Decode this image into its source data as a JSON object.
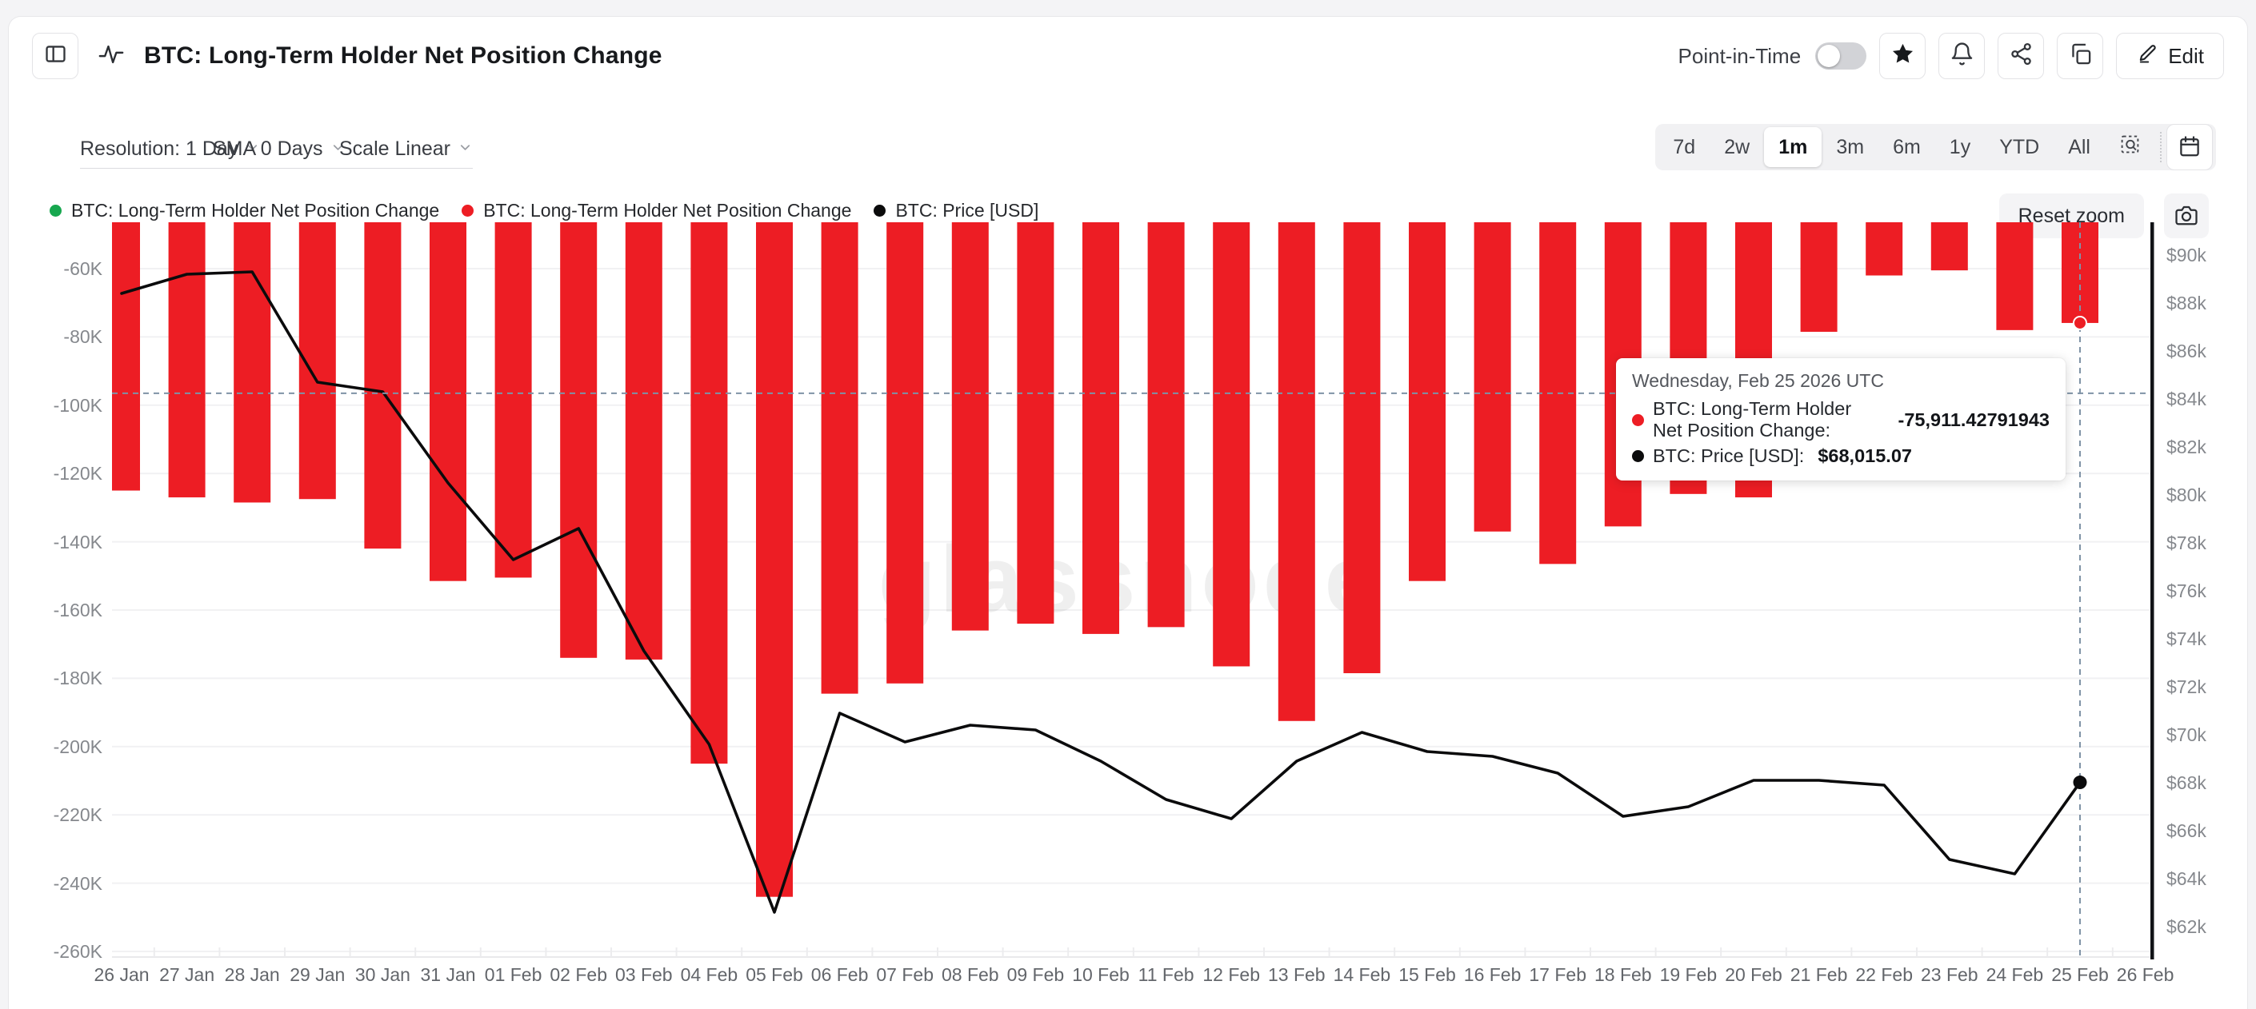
{
  "header": {
    "title": "BTC: Long-Term Holder Net Position Change",
    "point_in_time_label": "Point-in-Time",
    "edit_label": "Edit"
  },
  "toolbar": {
    "resolution_label": "Resolution: 1 Day",
    "sma_label": "SMA 0 Days",
    "scale_label": "Scale Linear",
    "ranges": [
      "7d",
      "2w",
      "1m",
      "3m",
      "6m",
      "1y",
      "YTD",
      "All"
    ],
    "active_range": "1m",
    "reset_zoom_label": "Reset zoom"
  },
  "legend": [
    {
      "label": "BTC: Long-Term Holder Net Position Change",
      "color": "#17a74f"
    },
    {
      "label": "BTC: Long-Term Holder Net Position Change",
      "color": "#ed1d24"
    },
    {
      "label": "BTC: Price [USD]",
      "color": "#0b0b0c"
    }
  ],
  "tooltip": {
    "date": "Wednesday, Feb 25 2026 UTC",
    "rows": [
      {
        "color": "#ed1d24",
        "label": "BTC: Long-Term Holder Net Position Change:",
        "value": "-75,911.42791943"
      },
      {
        "color": "#0b0b0c",
        "label": "BTC: Price [USD]:",
        "value": "$68,015.07"
      }
    ]
  },
  "watermark": "glassnode",
  "chart_data": {
    "type": "bar+line",
    "title": "BTC: Long-Term Holder Net Position Change",
    "x": [
      "26 Jan",
      "27 Jan",
      "28 Jan",
      "29 Jan",
      "30 Jan",
      "31 Jan",
      "01 Feb",
      "02 Feb",
      "03 Feb",
      "04 Feb",
      "05 Feb",
      "06 Feb",
      "07 Feb",
      "08 Feb",
      "09 Feb",
      "10 Feb",
      "11 Feb",
      "12 Feb",
      "13 Feb",
      "14 Feb",
      "15 Feb",
      "16 Feb",
      "17 Feb",
      "18 Feb",
      "19 Feb",
      "20 Feb",
      "21 Feb",
      "22 Feb",
      "23 Feb",
      "24 Feb",
      "25 Feb",
      "26 Feb"
    ],
    "series": [
      {
        "name": "BTC: Long-Term Holder Net Position Change",
        "type": "bar",
        "axis": "left",
        "color": "#ed1d24",
        "values": [
          -125000,
          -127000,
          -128500,
          -127500,
          -142000,
          -151500,
          -150500,
          -174000,
          -174500,
          -205000,
          -244000,
          -184500,
          -181500,
          -166000,
          -164000,
          -167000,
          -165000,
          -176500,
          -192500,
          -178500,
          -151500,
          -137000,
          -146500,
          -135500,
          -126000,
          -127000,
          -78500,
          -62000,
          -60500,
          -78000,
          -75911.42791943,
          null
        ]
      },
      {
        "name": "BTC: Price [USD]",
        "type": "line",
        "axis": "right",
        "color": "#0b0b0c",
        "values": [
          88400,
          89200,
          89300,
          84700,
          84300,
          80500,
          77300,
          78600,
          73500,
          69600,
          62600,
          70900,
          69700,
          70400,
          70200,
          68900,
          67300,
          66500,
          68900,
          70100,
          69300,
          69100,
          68400,
          66600,
          67000,
          68100,
          68100,
          67900,
          64800,
          64200,
          68015.07,
          null
        ]
      }
    ],
    "left_axis": {
      "ticks": [
        "-60K",
        "-80K",
        "-100K",
        "-120K",
        "-140K",
        "-160K",
        "-180K",
        "-200K",
        "-220K",
        "-240K",
        "-260K"
      ],
      "tick_values": [
        -60000,
        -80000,
        -100000,
        -120000,
        -140000,
        -160000,
        -180000,
        -200000,
        -220000,
        -240000,
        -260000
      ]
    },
    "right_axis": {
      "ticks": [
        "$90k",
        "$88k",
        "$86k",
        "$84k",
        "$82k",
        "$80k",
        "$78k",
        "$76k",
        "$74k",
        "$72k",
        "$70k",
        "$68k",
        "$66k",
        "$64k",
        "$62k"
      ],
      "tick_values": [
        90000,
        88000,
        86000,
        84000,
        82000,
        80000,
        78000,
        76000,
        74000,
        72000,
        70000,
        68000,
        66000,
        64000,
        62000
      ]
    },
    "grid": true,
    "legend_position": "top-left",
    "crosshair": {
      "x_index": 30,
      "y_left_value": -96500,
      "marker_bar_value": -75911.42791943,
      "marker_price_value": 68015.07
    }
  }
}
